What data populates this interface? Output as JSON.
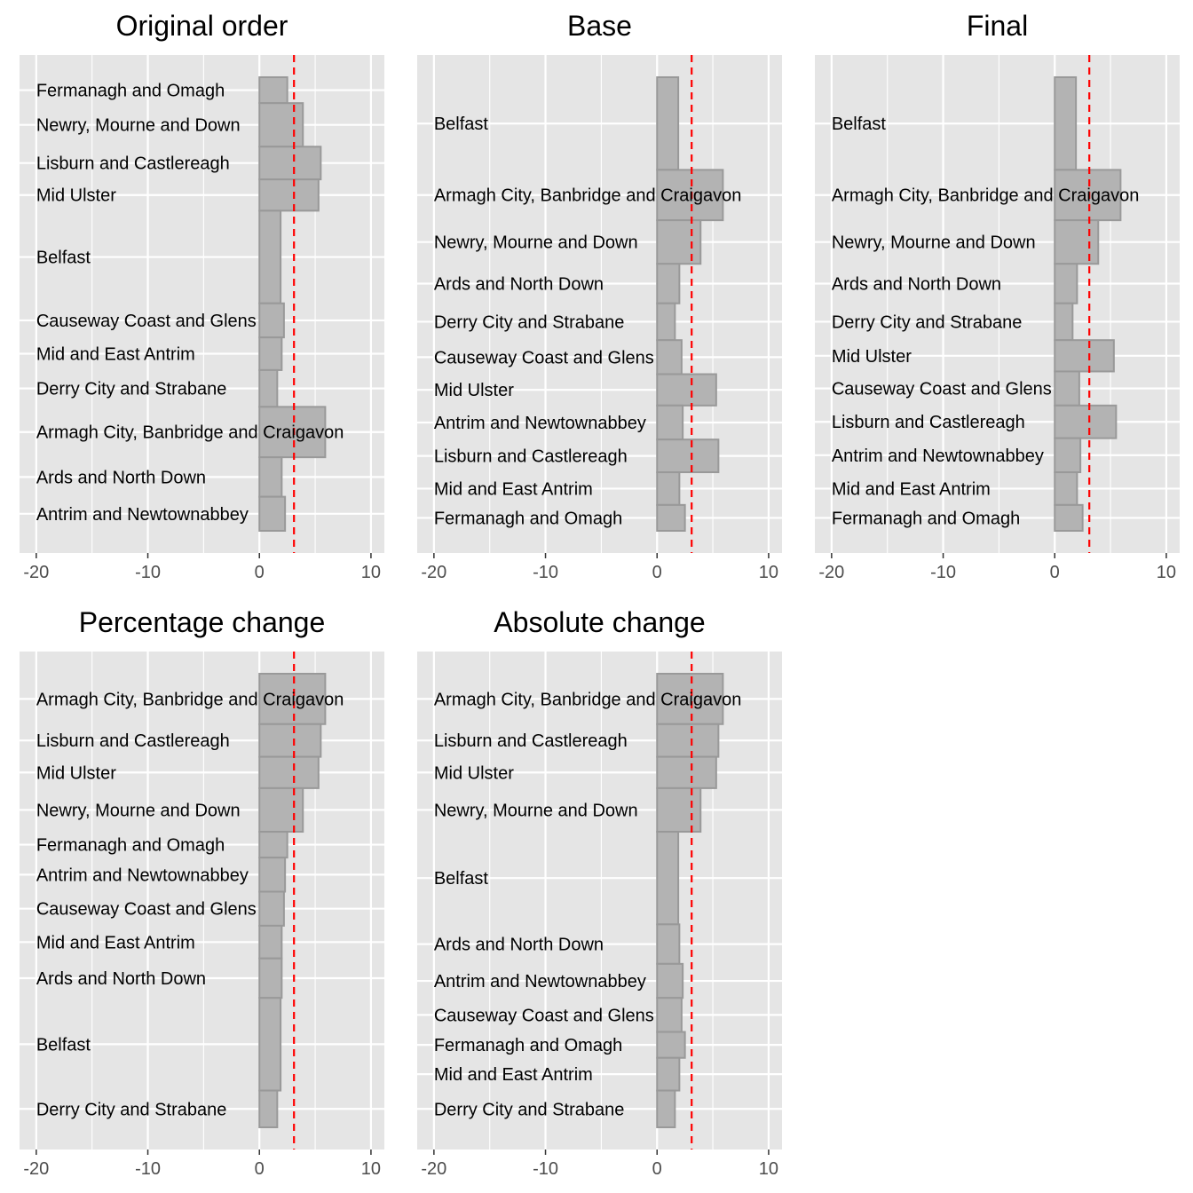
{
  "colors": {
    "panel_background": "#e5e5e5",
    "grid": "#ffffff",
    "bar_fill": "#b3b3b3",
    "bar_stroke": "#999999",
    "reference_line": "#ff0000",
    "tick_text": "#4d4d4d"
  },
  "chart_data": [
    {
      "type": "bar",
      "orientation": "horizontal",
      "title": "Original order",
      "xlim": [
        -21.5,
        11.2
      ],
      "xticks": [
        -20,
        -10,
        0,
        10
      ],
      "xtick_labels": [
        "-20",
        "-10",
        "0",
        "10"
      ],
      "grid": true,
      "reference_line": 3.1,
      "bars": [
        {
          "label": "Fermanagh and Omagh",
          "value": 2.5,
          "weight": 0.95
        },
        {
          "label": "Newry, Mourne and Down",
          "value": 3.9,
          "weight": 1.6
        },
        {
          "label": "Lisburn and Castlereagh",
          "value": 5.5,
          "weight": 1.2
        },
        {
          "label": "Mid Ulster",
          "value": 5.3,
          "weight": 1.15
        },
        {
          "label": "Belfast",
          "value": 1.9,
          "weight": 3.4
        },
        {
          "label": "Causeway Coast and Glens",
          "value": 2.2,
          "weight": 1.25
        },
        {
          "label": "Mid and East Antrim",
          "value": 2.0,
          "weight": 1.2
        },
        {
          "label": "Derry City and Strabane",
          "value": 1.6,
          "weight": 1.35
        },
        {
          "label": "Armagh City, Banbridge and Craigavon",
          "value": 5.9,
          "weight": 1.85
        },
        {
          "label": "Ards and North Down",
          "value": 2.0,
          "weight": 1.45
        },
        {
          "label": "Antrim and Newtownabbey",
          "value": 2.3,
          "weight": 1.25
        }
      ]
    },
    {
      "type": "bar",
      "orientation": "horizontal",
      "title": "Base",
      "xlim": [
        -21.5,
        11.2
      ],
      "xticks": [
        -20,
        -10,
        0,
        10
      ],
      "xtick_labels": [
        "-20",
        "-10",
        "0",
        "10"
      ],
      "grid": true,
      "reference_line": 3.1,
      "bars": [
        {
          "label": "Belfast",
          "value": 1.9,
          "weight": 3.4
        },
        {
          "label": "Armagh City, Banbridge and Craigavon",
          "value": 5.9,
          "weight": 1.85
        },
        {
          "label": "Newry, Mourne and Down",
          "value": 3.9,
          "weight": 1.6
        },
        {
          "label": "Ards and North Down",
          "value": 2.0,
          "weight": 1.45
        },
        {
          "label": "Derry City and Strabane",
          "value": 1.6,
          "weight": 1.35
        },
        {
          "label": "Causeway Coast and Glens",
          "value": 2.2,
          "weight": 1.25
        },
        {
          "label": "Mid Ulster",
          "value": 5.3,
          "weight": 1.15
        },
        {
          "label": "Antrim and Newtownabbey",
          "value": 2.3,
          "weight": 1.25
        },
        {
          "label": "Lisburn and Castlereagh",
          "value": 5.5,
          "weight": 1.2
        },
        {
          "label": "Mid and East Antrim",
          "value": 2.0,
          "weight": 1.2
        },
        {
          "label": "Fermanagh and Omagh",
          "value": 2.5,
          "weight": 0.95
        }
      ]
    },
    {
      "type": "bar",
      "orientation": "horizontal",
      "title": "Final",
      "xlim": [
        -21.5,
        11.2
      ],
      "xticks": [
        -20,
        -10,
        0,
        10
      ],
      "xtick_labels": [
        "-20",
        "-10",
        "0",
        "10"
      ],
      "grid": true,
      "reference_line": 3.1,
      "bars": [
        {
          "label": "Belfast",
          "value": 1.9,
          "weight": 3.4
        },
        {
          "label": "Armagh City, Banbridge and Craigavon",
          "value": 5.9,
          "weight": 1.85
        },
        {
          "label": "Newry, Mourne and Down",
          "value": 3.9,
          "weight": 1.6
        },
        {
          "label": "Ards and North Down",
          "value": 2.0,
          "weight": 1.45
        },
        {
          "label": "Derry City and Strabane",
          "value": 1.6,
          "weight": 1.35
        },
        {
          "label": "Mid Ulster",
          "value": 5.3,
          "weight": 1.15
        },
        {
          "label": "Causeway Coast and Glens",
          "value": 2.2,
          "weight": 1.25
        },
        {
          "label": "Lisburn and Castlereagh",
          "value": 5.5,
          "weight": 1.2
        },
        {
          "label": "Antrim and Newtownabbey",
          "value": 2.3,
          "weight": 1.25
        },
        {
          "label": "Mid and East Antrim",
          "value": 2.0,
          "weight": 1.2
        },
        {
          "label": "Fermanagh and Omagh",
          "value": 2.5,
          "weight": 0.95
        }
      ]
    },
    {
      "type": "bar",
      "orientation": "horizontal",
      "title": "Percentage change",
      "xlim": [
        -21.5,
        11.2
      ],
      "xticks": [
        -20,
        -10,
        0,
        10
      ],
      "xtick_labels": [
        "-20",
        "-10",
        "0",
        "10"
      ],
      "grid": true,
      "reference_line": 3.1,
      "bars": [
        {
          "label": "Armagh City, Banbridge and Craigavon",
          "value": 5.9,
          "weight": 1.85
        },
        {
          "label": "Lisburn and Castlereagh",
          "value": 5.5,
          "weight": 1.2
        },
        {
          "label": "Mid Ulster",
          "value": 5.3,
          "weight": 1.15
        },
        {
          "label": "Newry, Mourne and Down",
          "value": 3.9,
          "weight": 1.6
        },
        {
          "label": "Fermanagh and Omagh",
          "value": 2.5,
          "weight": 0.95
        },
        {
          "label": "Antrim and Newtownabbey",
          "value": 2.3,
          "weight": 1.25
        },
        {
          "label": "Causeway Coast and Glens",
          "value": 2.2,
          "weight": 1.25
        },
        {
          "label": "Mid and East Antrim",
          "value": 2.0,
          "weight": 1.2
        },
        {
          "label": "Ards and North Down",
          "value": 2.0,
          "weight": 1.45
        },
        {
          "label": "Belfast",
          "value": 1.9,
          "weight": 3.4
        },
        {
          "label": "Derry City and Strabane",
          "value": 1.6,
          "weight": 1.35
        }
      ]
    },
    {
      "type": "bar",
      "orientation": "horizontal",
      "title": "Absolute change",
      "xlim": [
        -21.5,
        11.2
      ],
      "xticks": [
        -20,
        -10,
        0,
        10
      ],
      "xtick_labels": [
        "-20",
        "-10",
        "0",
        "10"
      ],
      "grid": true,
      "reference_line": 3.1,
      "bars": [
        {
          "label": "Armagh City, Banbridge and Craigavon",
          "value": 5.9,
          "weight": 1.85
        },
        {
          "label": "Lisburn and Castlereagh",
          "value": 5.5,
          "weight": 1.2
        },
        {
          "label": "Mid Ulster",
          "value": 5.3,
          "weight": 1.15
        },
        {
          "label": "Newry, Mourne and Down",
          "value": 3.9,
          "weight": 1.6
        },
        {
          "label": "Belfast",
          "value": 1.9,
          "weight": 3.4
        },
        {
          "label": "Ards and North Down",
          "value": 2.0,
          "weight": 1.45
        },
        {
          "label": "Antrim and Newtownabbey",
          "value": 2.3,
          "weight": 1.25
        },
        {
          "label": "Causeway Coast and Glens",
          "value": 2.2,
          "weight": 1.25
        },
        {
          "label": "Fermanagh and Omagh",
          "value": 2.5,
          "weight": 0.95
        },
        {
          "label": "Mid and East Antrim",
          "value": 2.0,
          "weight": 1.2
        },
        {
          "label": "Derry City and Strabane",
          "value": 1.6,
          "weight": 1.35
        }
      ]
    }
  ]
}
